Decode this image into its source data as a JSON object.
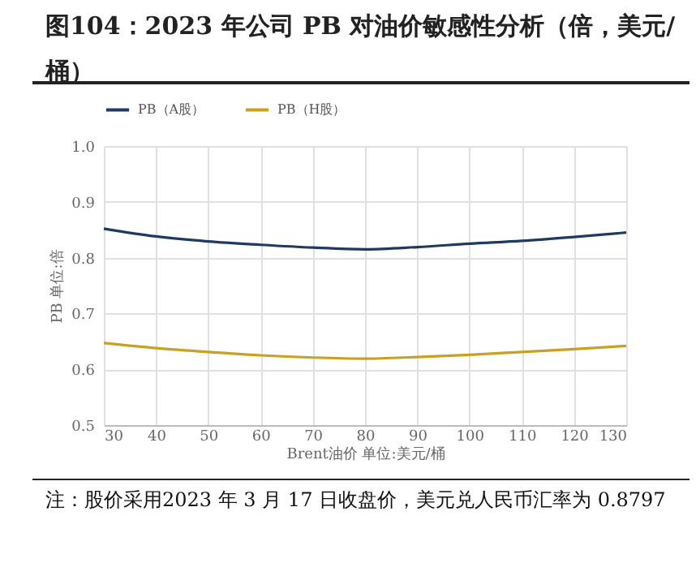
{
  "chart_data": {
    "type": "line",
    "title": "图104：2023 年公司 PB 对油价敏感性分析（倍，美元/桶）",
    "xlabel": "Brent油价 单位:美元/桶",
    "ylabel": "PB 单位:倍",
    "x": [
      30,
      40,
      50,
      60,
      70,
      80,
      90,
      100,
      110,
      120,
      130
    ],
    "series": [
      {
        "name": "PB（A股）",
        "color": "#1f3a60",
        "values": [
          0.852,
          0.838,
          0.829,
          0.823,
          0.818,
          0.815,
          0.819,
          0.825,
          0.83,
          0.837,
          0.845
        ]
      },
      {
        "name": "PB（H股）",
        "color": "#c9a020",
        "values": [
          0.647,
          0.638,
          0.631,
          0.625,
          0.621,
          0.619,
          0.622,
          0.626,
          0.631,
          0.636,
          0.642
        ]
      }
    ],
    "xlim": [
      30,
      130
    ],
    "xticks": [
      30,
      40,
      50,
      60,
      70,
      80,
      90,
      100,
      110,
      120,
      130
    ],
    "ylim": [
      0.5,
      1.0
    ],
    "yticks": [
      0.5,
      0.6,
      0.7,
      0.8,
      0.9,
      {
        "value": 1.0,
        "label": "1.0"
      }
    ],
    "grid": true,
    "legend": "top",
    "marker": "none",
    "line_style": "solid",
    "annotations": [
      "注：股价采用2023 年 3 月 17 日收盘价，美元兑人民币汇率为 0.8797"
    ]
  }
}
